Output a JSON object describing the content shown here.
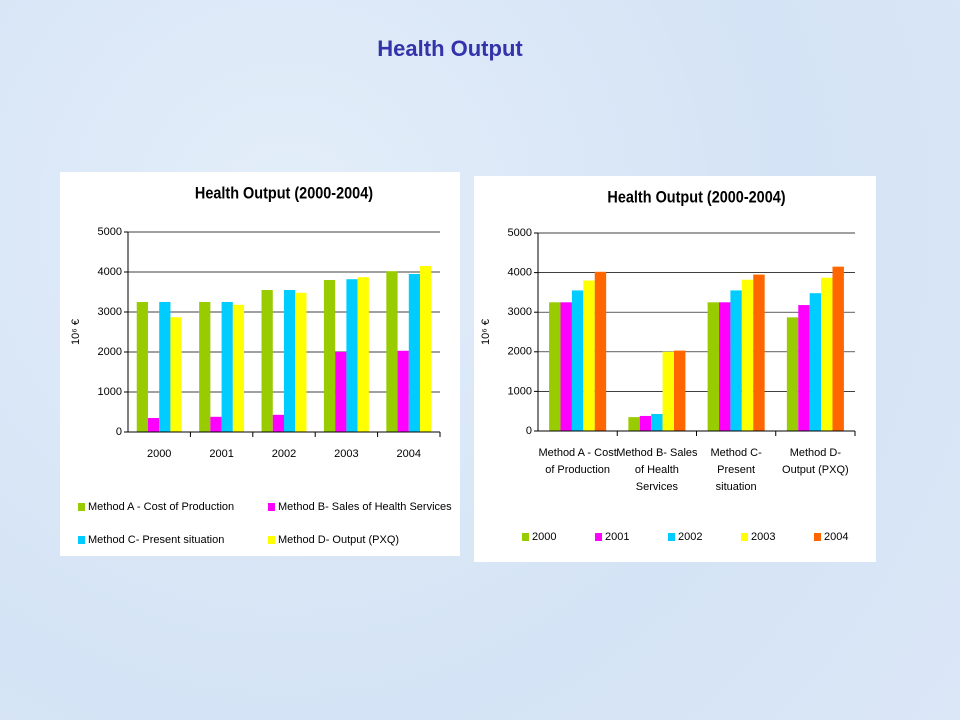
{
  "title": "Health Output",
  "chart_data": [
    {
      "type": "bar",
      "title": "Health Output (2000-2004)",
      "y_label": "10⁶ €",
      "categories": [
        "2000",
        "2001",
        "2002",
        "2003",
        "2004"
      ],
      "series": [
        {
          "name": "Method A - Cost of Production",
          "color": "#99cc00",
          "values": [
            3250,
            3250,
            3550,
            3800,
            4020
          ]
        },
        {
          "name": "Method B- Sales of Health Services",
          "color": "#ff00ff",
          "values": [
            350,
            380,
            430,
            2000,
            2030
          ]
        },
        {
          "name": "Method C- Present situation",
          "color": "#00ccff",
          "values": [
            3250,
            3250,
            3550,
            3820,
            3950
          ]
        },
        {
          "name": "Method D- Output (PXQ)",
          "color": "#ffff00",
          "values": [
            2870,
            3180,
            3480,
            3870,
            4150
          ]
        }
      ],
      "ylim": [
        0,
        5000
      ],
      "yticks": [
        0,
        1000,
        2000,
        3000,
        4000,
        5000
      ],
      "grid": true,
      "legend": "bottom"
    },
    {
      "type": "bar",
      "title": "Health Output (2000-2004)",
      "y_label": "10⁶ €",
      "categories": [
        "Method A - Cost of Production",
        "Method B- Sales of Health Services",
        "Method C- Present situation",
        "Method D- Output (PXQ)"
      ],
      "series": [
        {
          "name": "2000",
          "color": "#99cc00",
          "values": [
            3250,
            350,
            3250,
            2870
          ]
        },
        {
          "name": "2001",
          "color": "#ff00ff",
          "values": [
            3250,
            380,
            3250,
            3180
          ]
        },
        {
          "name": "2002",
          "color": "#00ccff",
          "values": [
            3550,
            430,
            3550,
            3480
          ]
        },
        {
          "name": "2003",
          "color": "#ffff00",
          "values": [
            3800,
            2000,
            3820,
            3870
          ]
        },
        {
          "name": "2004",
          "color": "#ff6600",
          "values": [
            4020,
            2030,
            3950,
            4150
          ]
        }
      ],
      "ylim": [
        0,
        5000
      ],
      "yticks": [
        0,
        1000,
        2000,
        3000,
        4000,
        5000
      ],
      "grid": true,
      "legend": "bottom"
    }
  ]
}
